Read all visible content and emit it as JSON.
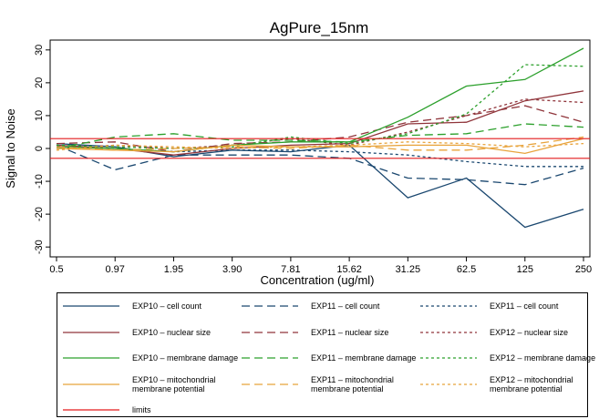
{
  "chart_data": {
    "type": "line",
    "title": "AgPure_15nm",
    "xlabel": "Concentration (ug/ml)",
    "ylabel": "Signal to Noise",
    "categories": [
      "0.5",
      "0.97",
      "1.95",
      "3.90",
      "7.81",
      "15.62",
      "31.25",
      "62.5",
      "125",
      "250"
    ],
    "ylim": [
      -33,
      33
    ],
    "yticks": [
      -30,
      -20,
      -10,
      0,
      10,
      20,
      30
    ],
    "grid": false,
    "legend_position": "bottom",
    "limits": [
      3,
      -3
    ],
    "series": [
      {
        "name": "EXP10 – cell count",
        "color": "#1a476f",
        "dash": "solid",
        "values": [
          1.5,
          0.5,
          -2.5,
          -0.5,
          -1,
          1,
          -15,
          -9,
          -24,
          -18.5
        ]
      },
      {
        "name": "EXP11 – cell count",
        "color": "#1a476f",
        "dash": "longdash",
        "values": [
          1,
          -6.5,
          -2,
          -2,
          -2,
          -3,
          -9,
          -9.5,
          -11,
          -6
        ]
      },
      {
        "name": "EXP11 – cell count",
        "color": "#1a476f",
        "dash": "shortdash",
        "values": [
          0.5,
          0,
          -1,
          -0.5,
          -0.5,
          -1,
          -2,
          -4,
          -5.5,
          -5.5
        ]
      },
      {
        "name": "EXP10 – nuclear size",
        "color": "#90353b",
        "dash": "solid",
        "values": [
          1,
          0,
          -2,
          0,
          1,
          1.5,
          7.5,
          8,
          14.5,
          17.5
        ]
      },
      {
        "name": "EXP11 – nuclear size",
        "color": "#90353b",
        "dash": "longdash",
        "values": [
          1.5,
          2,
          -1,
          1.5,
          2,
          3.5,
          8,
          10,
          13,
          8
        ]
      },
      {
        "name": "EXP12 – nuclear size",
        "color": "#90353b",
        "dash": "shortdash",
        "values": [
          0,
          1,
          0,
          1,
          3,
          1,
          5,
          10,
          15,
          14
        ]
      },
      {
        "name": "EXP10 – membrane damage",
        "color": "#2ca02c",
        "dash": "solid",
        "values": [
          0.5,
          0,
          -1,
          1,
          2,
          2,
          9.5,
          19,
          21,
          30.5
        ]
      },
      {
        "name": "EXP11 – membrane damage",
        "color": "#2ca02c",
        "dash": "longdash",
        "values": [
          0,
          3.5,
          4.5,
          2.5,
          2.5,
          2,
          4,
          4.5,
          7.5,
          6.5
        ]
      },
      {
        "name": "EXP12 – membrane damage",
        "color": "#2ca02c",
        "dash": "shortdash",
        "values": [
          1,
          0.5,
          0,
          0.5,
          3.5,
          1.5,
          4.5,
          10.5,
          25.5,
          25
        ]
      },
      {
        "name": "EXP10 – mitochondrial membrane potential",
        "color": "#e8a33b",
        "dash": "solid",
        "values": [
          0,
          -0.5,
          -1,
          1,
          0.5,
          0.5,
          1,
          1,
          -1.5,
          3
        ]
      },
      {
        "name": "EXP11 – mitochondrial membrane potential",
        "color": "#e8a33b",
        "dash": "longdash",
        "values": [
          0.5,
          -0.5,
          0,
          0.5,
          0,
          1,
          -0.5,
          -0.5,
          1,
          3.5
        ]
      },
      {
        "name": "EXP12 – mitochondrial membrane potential",
        "color": "#e8a33b",
        "dash": "shortdash",
        "values": [
          -0.5,
          1,
          0.5,
          0,
          0.5,
          1,
          2,
          1.5,
          0.5,
          1.5
        ]
      }
    ],
    "limits_label": "limits",
    "limits_color": "#e31a1c"
  }
}
